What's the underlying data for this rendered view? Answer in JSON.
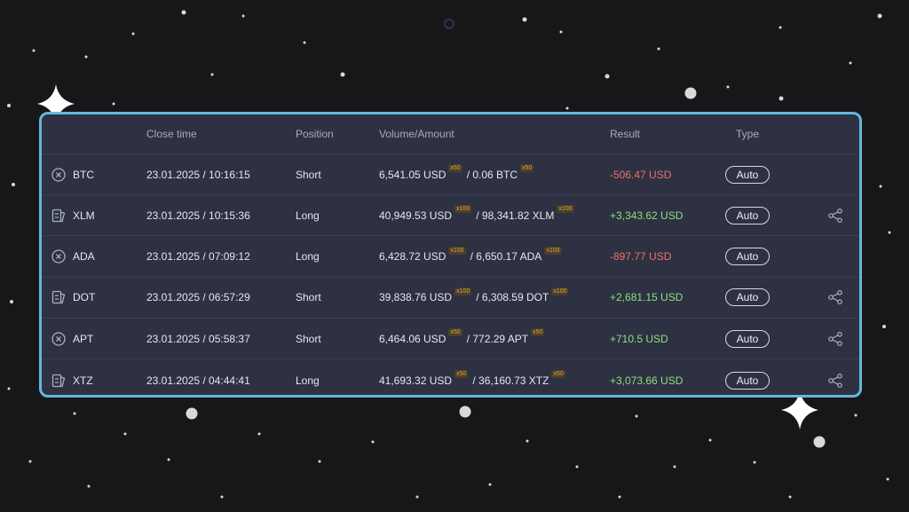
{
  "table": {
    "headers": {
      "close_time": "Close time",
      "position": "Position",
      "volume_amount": "Volume/Amount",
      "result": "Result",
      "type": "Type"
    },
    "rows": [
      {
        "status_icon": "cancelled-circle-icon",
        "asset": "BTC",
        "close_time": "23.01.2025 / 10:16:15",
        "position": "Short",
        "volume": "6,541.05 USD",
        "volume_leverage": "x50",
        "amount": "/ 0.06 BTC",
        "amount_leverage": "x50",
        "result": "-506.47 USD",
        "result_sign": "negative",
        "type": "Auto",
        "share": false
      },
      {
        "status_icon": "trade-card-icon",
        "asset": "XLM",
        "close_time": "23.01.2025 / 10:15:36",
        "position": "Long",
        "volume": "40,949.53 USD",
        "volume_leverage": "x100",
        "amount": "/ 98,341.82 XLM",
        "amount_leverage": "x100",
        "result": "+3,343.62 USD",
        "result_sign": "positive",
        "type": "Auto",
        "share": true
      },
      {
        "status_icon": "cancelled-circle-icon",
        "asset": "ADA",
        "close_time": "23.01.2025 / 07:09:12",
        "position": "Long",
        "volume": "6,428.72 USD",
        "volume_leverage": "x100",
        "amount": "/ 6,650.17 ADA",
        "amount_leverage": "x100",
        "result": "-897.77 USD",
        "result_sign": "negative",
        "type": "Auto",
        "share": false
      },
      {
        "status_icon": "trade-card-icon",
        "asset": "DOT",
        "close_time": "23.01.2025 / 06:57:29",
        "position": "Short",
        "volume": "39,838.76 USD",
        "volume_leverage": "x100",
        "amount": "/ 6,308.59 DOT",
        "amount_leverage": "x100",
        "result": "+2,681.15 USD",
        "result_sign": "positive",
        "type": "Auto",
        "share": true
      },
      {
        "status_icon": "cancelled-circle-icon",
        "asset": "APT",
        "close_time": "23.01.2025 / 05:58:37",
        "position": "Short",
        "volume": "6,464.06 USD",
        "volume_leverage": "x50",
        "amount": "/ 772.29 APT",
        "amount_leverage": "x50",
        "result": "+710.5 USD",
        "result_sign": "positive",
        "type": "Auto",
        "share": true
      },
      {
        "status_icon": "trade-card-icon",
        "asset": "XTZ",
        "close_time": "23.01.2025 / 04:44:41",
        "position": "Long",
        "volume": "41,693.32 USD",
        "volume_leverage": "x50",
        "amount": "/ 36,160.73 XTZ",
        "amount_leverage": "x50",
        "result": "+3,073.66 USD",
        "result_sign": "positive",
        "type": "Auto",
        "share": true
      }
    ]
  },
  "colors": {
    "background": "#17171a",
    "panel": "#2d3142",
    "panel_border": "#62b8de",
    "negative": "#f07169",
    "positive": "#8fe07d",
    "leverage_badge": "#e3a73a"
  }
}
